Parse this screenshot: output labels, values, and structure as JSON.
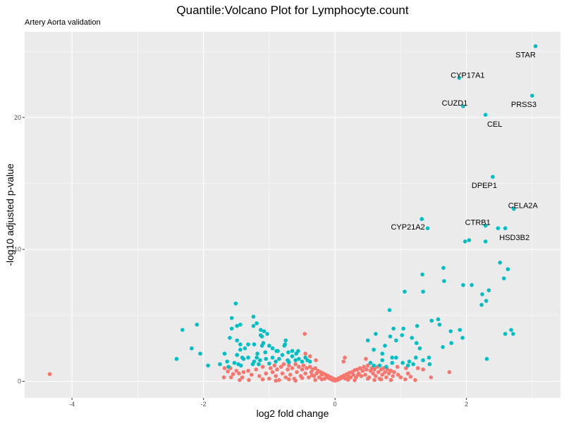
{
  "chart_data": {
    "type": "scatter",
    "title": "Quantile:Volcano Plot for Lymphocyte.count",
    "subtitle": "Artery Aorta validation",
    "xlabel": "log2 fold change",
    "ylabel": "-log10 adjusted p-value",
    "xlim": [
      -4.72,
      3.43
    ],
    "ylim": [
      -1.25,
      26.5
    ],
    "x_ticks": [
      -4,
      -2,
      0,
      2
    ],
    "y_ticks": [
      0,
      10,
      20
    ],
    "grid": true,
    "legend": "none",
    "colors": {
      "significant": "#00BFC4",
      "not_significant": "#F8766D",
      "panel": "#EBEBEB",
      "grid": "#FFFFFF"
    },
    "labeled_genes": [
      {
        "gene": "STAR",
        "x": 3.05,
        "y": 25.4
      },
      {
        "gene": "CYP17A1",
        "x": 1.89,
        "y": 23.0
      },
      {
        "gene": "CUZD1",
        "x": 1.95,
        "y": 20.85
      },
      {
        "gene": "PRSS3",
        "x": 3.0,
        "y": 21.65
      },
      {
        "gene": "CEL",
        "x": 2.29,
        "y": 20.2
      },
      {
        "gene": "DPEP1",
        "x": 2.4,
        "y": 15.5
      },
      {
        "gene": "CELA2A",
        "x": 2.72,
        "y": 13.07
      },
      {
        "gene": "CTRB1",
        "x": 2.29,
        "y": 11.8
      },
      {
        "gene": "HSD3B2",
        "x": 2.59,
        "y": 11.6
      },
      {
        "gene": "CYP21A2",
        "x": 1.41,
        "y": 11.6
      }
    ],
    "significant_points": [
      [
        1.32,
        12.3
      ],
      [
        1.98,
        10.6
      ],
      [
        2.04,
        10.7
      ],
      [
        2.29,
        10.6
      ],
      [
        2.48,
        11.6
      ],
      [
        2.51,
        9.0
      ],
      [
        2.63,
        8.5
      ],
      [
        2.57,
        7.8
      ],
      [
        1.65,
        8.6
      ],
      [
        1.33,
        8.1
      ],
      [
        1.66,
        7.6
      ],
      [
        1.95,
        7.3
      ],
      [
        2.08,
        7.3
      ],
      [
        1.06,
        6.8
      ],
      [
        1.34,
        6.8
      ],
      [
        2.24,
        6.6
      ],
      [
        2.34,
        6.9
      ],
      [
        2.3,
        6.1
      ],
      [
        2.23,
        5.8
      ],
      [
        0.83,
        5.4
      ],
      [
        1.47,
        4.6
      ],
      [
        1.57,
        4.7
      ],
      [
        1.59,
        4.3
      ],
      [
        0.89,
        4.0
      ],
      [
        1.04,
        4.0
      ],
      [
        1.25,
        4.2
      ],
      [
        1.76,
        3.8
      ],
      [
        1.9,
        3.9
      ],
      [
        1.94,
        3.3
      ],
      [
        2.68,
        3.9
      ],
      [
        2.59,
        3.6
      ],
      [
        2.71,
        3.6
      ],
      [
        0.62,
        3.6
      ],
      [
        0.5,
        3.1
      ],
      [
        0.84,
        3.4
      ],
      [
        1.02,
        3.5
      ],
      [
        0.93,
        3.1
      ],
      [
        1.17,
        3.3
      ],
      [
        1.24,
        2.9
      ],
      [
        1.29,
        2.5
      ],
      [
        0.76,
        2.7
      ],
      [
        0.59,
        2.4
      ],
      [
        0.72,
        2.1
      ],
      [
        1.64,
        2.6
      ],
      [
        1.77,
        2.9
      ],
      [
        2.31,
        1.7
      ],
      [
        0.87,
        1.8
      ],
      [
        0.93,
        1.8
      ],
      [
        1.23,
        1.8
      ],
      [
        1.43,
        1.8
      ],
      [
        1.34,
        1.6
      ],
      [
        1.44,
        1.3
      ],
      [
        1.03,
        1.4
      ],
      [
        1.13,
        1.5
      ],
      [
        1.19,
        1.3
      ],
      [
        1.11,
        1.2
      ],
      [
        0.72,
        1.6
      ],
      [
        0.54,
        1.4
      ],
      [
        0.59,
        1.2
      ],
      [
        0.68,
        1.2
      ],
      [
        0.78,
        1.1
      ],
      [
        0.87,
        1.4
      ],
      [
        -1.51,
        5.9
      ],
      [
        -2.32,
        3.9
      ],
      [
        -2.1,
        4.3
      ],
      [
        -2.41,
        1.7
      ],
      [
        -2.18,
        2.5
      ],
      [
        -2.05,
        2.1
      ],
      [
        -1.93,
        1.2
      ],
      [
        -1.57,
        4.8
      ],
      [
        -1.24,
        4.9
      ],
      [
        -1.19,
        4.4
      ],
      [
        -1.24,
        4.2
      ],
      [
        -1.57,
        4.0
      ],
      [
        -1.49,
        4.2
      ],
      [
        -1.44,
        4.3
      ],
      [
        -1.13,
        3.9
      ],
      [
        -1.08,
        3.8
      ],
      [
        -1.03,
        3.6
      ],
      [
        -1.13,
        3.5
      ],
      [
        -1.11,
        3.4
      ],
      [
        -1.6,
        3.3
      ],
      [
        -1.49,
        3.1
      ],
      [
        -1.44,
        2.8
      ],
      [
        -1.32,
        2.8
      ],
      [
        -1.23,
        2.8
      ],
      [
        -1.09,
        2.9
      ],
      [
        -1.11,
        2.7
      ],
      [
        -1.0,
        2.7
      ],
      [
        -0.95,
        2.5
      ],
      [
        -1.06,
        2.2
      ],
      [
        -1.18,
        2.1
      ],
      [
        -1.37,
        2.5
      ],
      [
        -1.44,
        2.4
      ],
      [
        -1.68,
        2.1
      ],
      [
        -1.49,
        2.0
      ],
      [
        -1.41,
        1.8
      ],
      [
        -1.39,
        1.7
      ],
      [
        -1.32,
        1.8
      ],
      [
        -1.23,
        1.5
      ],
      [
        -1.19,
        1.8
      ],
      [
        -1.14,
        1.6
      ],
      [
        -1.05,
        1.7
      ],
      [
        -1.64,
        1.5
      ],
      [
        -1.53,
        1.4
      ],
      [
        -1.47,
        1.3
      ],
      [
        -1.43,
        1.2
      ],
      [
        -1.62,
        1.1
      ],
      [
        -1.75,
        1.3
      ],
      [
        -1.25,
        1.3
      ],
      [
        -1.16,
        1.3
      ],
      [
        -0.89,
        2.3
      ],
      [
        -0.87,
        2.3
      ],
      [
        -0.77,
        2.7
      ],
      [
        -0.75,
        3.1
      ],
      [
        -0.76,
        2.8
      ],
      [
        -0.71,
        2.2
      ],
      [
        -0.65,
        2.3
      ],
      [
        -0.56,
        2.3
      ],
      [
        -0.59,
        2.1
      ],
      [
        -0.95,
        1.8
      ],
      [
        -0.85,
        1.7
      ],
      [
        -0.8,
        2.0
      ],
      [
        -0.72,
        1.6
      ],
      [
        -0.65,
        1.9
      ],
      [
        -0.6,
        1.6
      ],
      [
        -0.55,
        1.7
      ],
      [
        -0.5,
        1.5
      ],
      [
        -0.45,
        1.8
      ],
      [
        -0.42,
        1.6
      ],
      [
        -0.38,
        1.5
      ],
      [
        -0.7,
        1.45
      ],
      [
        -0.9,
        1.5
      ],
      [
        -1.0,
        1.35
      ]
    ],
    "nonsignificant_points": [
      [
        -4.34,
        0.55
      ],
      [
        -0.46,
        3.6
      ],
      [
        -0.45,
        2.1
      ],
      [
        -0.38,
        1.9
      ],
      [
        -0.29,
        1.6
      ],
      [
        -1.68,
        1.0
      ],
      [
        -1.63,
        0.75
      ],
      [
        -1.69,
        0.3
      ],
      [
        -1.58,
        0.3
      ],
      [
        -1.59,
        1.0
      ],
      [
        -1.5,
        0.8
      ],
      [
        -1.46,
        0.6
      ],
      [
        -1.41,
        0.3
      ],
      [
        -1.39,
        0.7
      ],
      [
        -1.32,
        0.8
      ],
      [
        -1.27,
        0.5
      ],
      [
        -1.31,
        0.1
      ],
      [
        0.15,
        1.8
      ],
      [
        0.13,
        1.5
      ],
      [
        0.47,
        1.7
      ],
      [
        1.26,
        1.0
      ],
      [
        1.34,
        0.9
      ],
      [
        1.74,
        0.7
      ],
      [
        1.46,
        0.3
      ],
      [
        1.08,
        1.0
      ],
      [
        1.11,
        0.6
      ],
      [
        1.22,
        0.1
      ],
      [
        0.96,
        0.5
      ],
      [
        1.07,
        0.15
      ],
      [
        -1.2,
        0.9
      ],
      [
        -1.15,
        0.4
      ],
      [
        -1.1,
        1.1
      ],
      [
        -1.05,
        0.6
      ],
      [
        -1.0,
        0.2
      ],
      [
        -0.98,
        1.0
      ],
      [
        -0.95,
        0.7
      ],
      [
        -0.92,
        1.2
      ],
      [
        -0.9,
        0.4
      ],
      [
        -0.88,
        0.9
      ],
      [
        -0.85,
        0.1
      ],
      [
        -0.82,
        1.1
      ],
      [
        -0.8,
        0.6
      ],
      [
        -0.78,
        1.3
      ],
      [
        -0.75,
        0.3
      ],
      [
        -0.72,
        0.9
      ],
      [
        -0.7,
        1.2
      ],
      [
        -0.68,
        0.5
      ],
      [
        -0.65,
        1.0
      ],
      [
        -0.62,
        0.2
      ],
      [
        -0.6,
        1.3
      ],
      [
        -0.58,
        0.7
      ],
      [
        -0.55,
        1.1
      ],
      [
        -0.52,
        0.4
      ],
      [
        -0.5,
        0.9
      ],
      [
        -0.48,
        1.2
      ],
      [
        -0.45,
        0.6
      ],
      [
        -0.43,
        1.0
      ],
      [
        -0.4,
        0.3
      ],
      [
        -0.38,
        1.1
      ],
      [
        -0.36,
        0.7
      ],
      [
        -0.34,
        0.9
      ],
      [
        -0.32,
        0.4
      ],
      [
        -0.3,
        1.0
      ],
      [
        -0.28,
        0.6
      ],
      [
        -0.26,
        0.8
      ],
      [
        -0.24,
        0.3
      ],
      [
        -0.22,
        0.7
      ],
      [
        -0.2,
        0.5
      ],
      [
        -0.18,
        0.6
      ],
      [
        -0.16,
        0.2
      ],
      [
        -0.14,
        0.5
      ],
      [
        -0.12,
        0.3
      ],
      [
        -0.1,
        0.4
      ],
      [
        -0.08,
        0.2
      ],
      [
        -0.06,
        0.3
      ],
      [
        -0.04,
        0.1
      ],
      [
        -0.02,
        0.2
      ],
      [
        0.0,
        0.05
      ],
      [
        0.02,
        0.15
      ],
      [
        0.04,
        0.1
      ],
      [
        0.06,
        0.25
      ],
      [
        0.08,
        0.2
      ],
      [
        0.1,
        0.35
      ],
      [
        0.12,
        0.3
      ],
      [
        0.14,
        0.45
      ],
      [
        0.16,
        0.2
      ],
      [
        0.18,
        0.55
      ],
      [
        0.2,
        0.4
      ],
      [
        0.22,
        0.65
      ],
      [
        0.24,
        0.3
      ],
      [
        0.26,
        0.7
      ],
      [
        0.28,
        0.5
      ],
      [
        0.3,
        0.85
      ],
      [
        0.32,
        0.3
      ],
      [
        0.34,
        0.9
      ],
      [
        0.36,
        0.6
      ],
      [
        0.38,
        1.0
      ],
      [
        0.4,
        0.4
      ],
      [
        0.42,
        0.8
      ],
      [
        0.44,
        1.1
      ],
      [
        0.46,
        0.5
      ],
      [
        0.48,
        0.9
      ],
      [
        0.5,
        1.2
      ],
      [
        0.52,
        0.3
      ],
      [
        0.54,
        0.8
      ],
      [
        0.56,
        1.0
      ],
      [
        0.58,
        0.6
      ],
      [
        0.6,
        0.9
      ],
      [
        0.62,
        0.4
      ],
      [
        0.64,
        1.1
      ],
      [
        0.66,
        0.7
      ],
      [
        0.68,
        0.2
      ],
      [
        0.7,
        0.9
      ],
      [
        0.72,
        0.5
      ],
      [
        0.74,
        1.0
      ],
      [
        0.76,
        0.7
      ],
      [
        0.78,
        0.3
      ],
      [
        0.8,
        0.9
      ],
      [
        0.82,
        0.6
      ],
      [
        0.85,
        0.8
      ],
      [
        0.88,
        0.4
      ],
      [
        0.9,
        0.7
      ],
      [
        -0.6,
        0.05
      ],
      [
        -0.3,
        0.1
      ],
      [
        0.3,
        0.08
      ],
      [
        0.6,
        0.1
      ],
      [
        -0.9,
        0.05
      ],
      [
        0.85,
        0.1
      ],
      [
        -0.5,
        0.25
      ],
      [
        -0.2,
        0.15
      ],
      [
        0.2,
        0.12
      ],
      [
        0.5,
        0.2
      ],
      [
        -0.7,
        0.15
      ],
      [
        0.7,
        0.15
      ],
      [
        -0.35,
        0.45
      ],
      [
        0.35,
        0.5
      ],
      [
        -1.45,
        0.1
      ],
      [
        -1.55,
        0.55
      ],
      [
        -1.1,
        0.15
      ],
      [
        1.0,
        0.3
      ],
      [
        0.95,
        1.1
      ],
      [
        1.15,
        0.35
      ]
    ]
  }
}
